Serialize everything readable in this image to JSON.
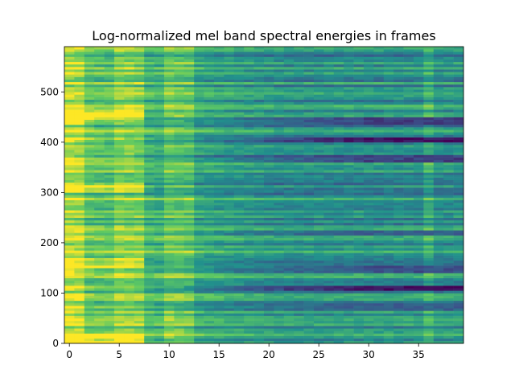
{
  "chart_data": {
    "type": "heatmap",
    "title": "Log-normalized mel band spectral energies in frames",
    "xlabel": "",
    "ylabel": "",
    "colormap": "viridis",
    "x_range": [
      -0.5,
      39.5
    ],
    "y_range": [
      0,
      590
    ],
    "n_frames": 40,
    "n_rows": 590,
    "x_ticks": [
      0,
      5,
      10,
      15,
      20,
      25,
      30,
      35
    ],
    "y_ticks": [
      0,
      100,
      200,
      300,
      400,
      500
    ],
    "x_tick_labels": [
      "0",
      "5",
      "10",
      "15",
      "20",
      "25",
      "30",
      "35"
    ],
    "y_tick_labels": [
      "0",
      "100",
      "200",
      "300",
      "400",
      "500"
    ],
    "grid": false,
    "bright_frames": [
      0,
      1,
      5,
      6,
      7,
      10,
      11,
      12,
      36
    ],
    "dark_bands": [
      {
        "row": 70,
        "intensity": 0.3
      },
      {
        "row": 108,
        "intensity": 0.05
      },
      {
        "row": 145,
        "intensity": 0.25
      },
      {
        "row": 218,
        "intensity": 0.3
      },
      {
        "row": 365,
        "intensity": 0.2
      },
      {
        "row": 402,
        "intensity": 0.05
      },
      {
        "row": 440,
        "intensity": 0.2
      }
    ]
  }
}
